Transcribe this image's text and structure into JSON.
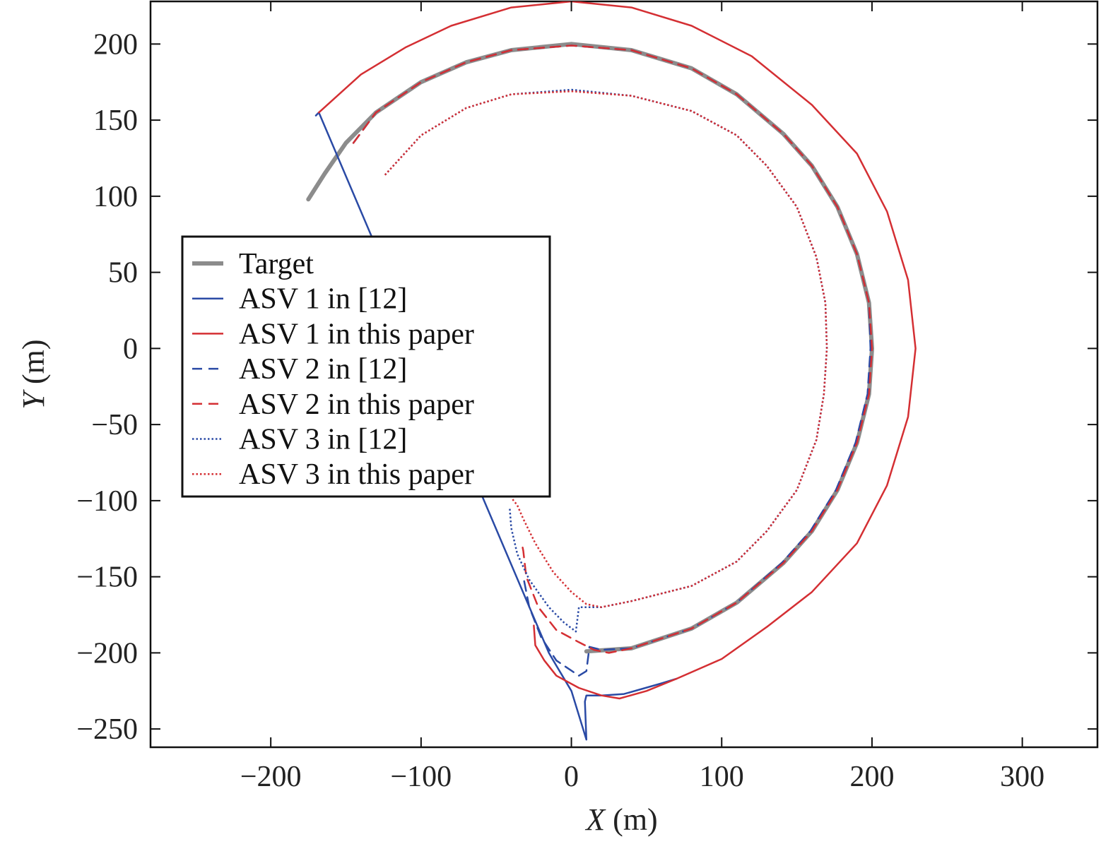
{
  "chart_data": {
    "type": "line",
    "title": "",
    "xlabel": {
      "var": "X",
      "unit": " (m)"
    },
    "ylabel": {
      "var": "Y",
      "unit": " (m)"
    },
    "xlim": [
      -280,
      350
    ],
    "ylim": [
      -262,
      228
    ],
    "xticks": [
      -200,
      -100,
      0,
      100,
      200,
      300
    ],
    "yticks": [
      200,
      150,
      100,
      50,
      0,
      -50,
      -100,
      -150,
      -200,
      -250
    ],
    "xtick_labels": [
      "−200",
      "−100",
      "0",
      "100",
      "200",
      "300"
    ],
    "ytick_labels": [
      "200",
      "150",
      "100",
      "50",
      "0",
      "−50",
      "−100",
      "−150",
      "−200",
      "−250"
    ],
    "grid": false,
    "legend_position": "center-left",
    "series": [
      {
        "name": "Target",
        "color": "#8c8c8c",
        "dash": "solid",
        "width": 6,
        "points": [
          [
            -175,
            98
          ],
          [
            -164,
            115
          ],
          [
            -150,
            135
          ],
          [
            -130,
            155
          ],
          [
            -100,
            175
          ],
          [
            -70,
            188
          ],
          [
            -40,
            196
          ],
          [
            0,
            200
          ],
          [
            40,
            196
          ],
          [
            80,
            184
          ],
          [
            110,
            167
          ],
          [
            141,
            141
          ],
          [
            160,
            120
          ],
          [
            177,
            93
          ],
          [
            190,
            62
          ],
          [
            198,
            30
          ],
          [
            200,
            0
          ],
          [
            198,
            -30
          ],
          [
            190,
            -62
          ],
          [
            177,
            -93
          ],
          [
            160,
            -120
          ],
          [
            141,
            -141
          ],
          [
            110,
            -167
          ],
          [
            80,
            -184
          ],
          [
            40,
            -197
          ],
          [
            25,
            -198
          ],
          [
            10,
            -199
          ]
        ]
      },
      {
        "name": "ASV 1 in [12]",
        "color": "#2a4aa5",
        "dash": "solid",
        "width": 2.5,
        "points": [
          [
            -170,
            153
          ],
          [
            -168,
            155
          ],
          [
            -15,
            -200
          ],
          [
            -12,
            -205
          ],
          [
            0,
            -225
          ],
          [
            10,
            -257
          ],
          [
            9,
            -232
          ],
          [
            10,
            -228
          ],
          [
            20,
            -228
          ],
          [
            35,
            -227
          ],
          [
            60,
            -220
          ],
          [
            70,
            -217
          ]
        ]
      },
      {
        "name": "ASV 1 in this paper",
        "color": "#d42f33",
        "dash": "solid",
        "width": 2.5,
        "points": [
          [
            -168,
            155
          ],
          [
            -140,
            180
          ],
          [
            -110,
            198
          ],
          [
            -80,
            212
          ],
          [
            -40,
            224
          ],
          [
            0,
            228
          ],
          [
            40,
            224
          ],
          [
            80,
            212
          ],
          [
            120,
            192
          ],
          [
            160,
            160
          ],
          [
            190,
            128
          ],
          [
            210,
            90
          ],
          [
            224,
            45
          ],
          [
            229,
            0
          ],
          [
            224,
            -45
          ],
          [
            210,
            -90
          ],
          [
            190,
            -128
          ],
          [
            160,
            -160
          ],
          [
            130,
            -183
          ],
          [
            100,
            -204
          ],
          [
            70,
            -217
          ],
          [
            50,
            -225
          ],
          [
            32,
            -230
          ],
          [
            20,
            -228
          ],
          [
            5,
            -223
          ],
          [
            -10,
            -215
          ],
          [
            -18,
            -205
          ],
          [
            -24,
            -195
          ],
          [
            -25,
            -182
          ]
        ]
      },
      {
        "name": "ASV 2 in [12]",
        "color": "#2a4aa5",
        "dash": "dashed",
        "width": 2.5,
        "points": [
          [
            -145,
            135
          ],
          [
            -130,
            155
          ],
          [
            -100,
            175
          ],
          [
            -70,
            188
          ],
          [
            -40,
            196
          ],
          [
            0,
            199
          ],
          [
            40,
            196
          ],
          [
            80,
            184
          ],
          [
            110,
            167
          ],
          [
            141,
            141
          ],
          [
            160,
            120
          ],
          [
            177,
            93
          ],
          [
            190,
            62
          ],
          [
            198,
            30
          ],
          [
            199,
            0
          ],
          [
            197,
            -30
          ],
          [
            189,
            -62
          ],
          [
            176,
            -93
          ],
          [
            159,
            -120
          ],
          [
            140,
            -141
          ],
          [
            110,
            -167
          ],
          [
            80,
            -184
          ],
          [
            40,
            -197
          ],
          [
            20,
            -198
          ],
          [
            12,
            -196
          ],
          [
            10,
            -212
          ],
          [
            5,
            -215
          ],
          [
            -10,
            -205
          ],
          [
            -20,
            -190
          ],
          [
            -28,
            -170
          ],
          [
            -32,
            -150
          ]
        ]
      },
      {
        "name": "ASV 2 in this paper",
        "color": "#d42f33",
        "dash": "dashed",
        "width": 2.5,
        "points": [
          [
            -145,
            135
          ],
          [
            -130,
            155
          ],
          [
            -100,
            175
          ],
          [
            -70,
            188
          ],
          [
            -40,
            196
          ],
          [
            0,
            199
          ],
          [
            40,
            196
          ],
          [
            80,
            184
          ],
          [
            110,
            167
          ],
          [
            141,
            141
          ],
          [
            160,
            120
          ],
          [
            177,
            93
          ],
          [
            190,
            62
          ],
          [
            198,
            30
          ],
          [
            200,
            0
          ],
          [
            198,
            -30
          ],
          [
            190,
            -62
          ],
          [
            177,
            -93
          ],
          [
            160,
            -120
          ],
          [
            141,
            -141
          ],
          [
            110,
            -167
          ],
          [
            80,
            -184
          ],
          [
            40,
            -197
          ],
          [
            25,
            -200
          ],
          [
            15,
            -198
          ],
          [
            5,
            -193
          ],
          [
            -10,
            -185
          ],
          [
            -22,
            -170
          ],
          [
            -30,
            -150
          ],
          [
            -32,
            -133
          ],
          [
            -33,
            -128
          ]
        ]
      },
      {
        "name": "ASV 3 in [12]",
        "color": "#2a4aa5",
        "dash": "dotted",
        "width": 2.5,
        "points": [
          [
            -124,
            114
          ],
          [
            -100,
            140
          ],
          [
            -70,
            158
          ],
          [
            -40,
            167
          ],
          [
            0,
            170
          ],
          [
            40,
            166
          ],
          [
            80,
            156
          ],
          [
            110,
            140
          ],
          [
            130,
            120
          ],
          [
            150,
            93
          ],
          [
            163,
            60
          ],
          [
            169,
            30
          ],
          [
            170,
            0
          ],
          [
            168,
            -30
          ],
          [
            163,
            -60
          ],
          [
            150,
            -93
          ],
          [
            130,
            -120
          ],
          [
            110,
            -140
          ],
          [
            80,
            -156
          ],
          [
            40,
            -166
          ],
          [
            20,
            -170
          ],
          [
            5,
            -170
          ],
          [
            3,
            -186
          ],
          [
            -5,
            -180
          ],
          [
            -15,
            -170
          ],
          [
            -28,
            -152
          ],
          [
            -36,
            -135
          ],
          [
            -40,
            -118
          ],
          [
            -41,
            -105
          ]
        ]
      },
      {
        "name": "ASV 3 in this paper",
        "color": "#d42f33",
        "dash": "dotted",
        "width": 2.5,
        "points": [
          [
            -124,
            114
          ],
          [
            -100,
            140
          ],
          [
            -70,
            158
          ],
          [
            -40,
            167
          ],
          [
            0,
            169
          ],
          [
            40,
            166
          ],
          [
            80,
            156
          ],
          [
            110,
            140
          ],
          [
            130,
            120
          ],
          [
            150,
            93
          ],
          [
            163,
            60
          ],
          [
            169,
            30
          ],
          [
            170,
            0
          ],
          [
            168,
            -30
          ],
          [
            163,
            -60
          ],
          [
            150,
            -93
          ],
          [
            130,
            -120
          ],
          [
            110,
            -140
          ],
          [
            80,
            -156
          ],
          [
            40,
            -166
          ],
          [
            20,
            -170
          ],
          [
            10,
            -168
          ],
          [
            0,
            -160
          ],
          [
            -12,
            -147
          ],
          [
            -24,
            -128
          ],
          [
            -32,
            -112
          ],
          [
            -36,
            -103
          ],
          [
            -40,
            -98
          ]
        ]
      }
    ]
  }
}
